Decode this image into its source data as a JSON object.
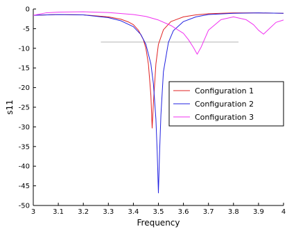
{
  "chart_data": {
    "type": "line",
    "xlabel": "Frequency",
    "ylabel": "s11",
    "xlim": [
      3,
      4
    ],
    "ylim": [
      -50,
      0
    ],
    "x_ticks": [
      3,
      3.1,
      3.2,
      3.3,
      3.4,
      3.5,
      3.6,
      3.7,
      3.8,
      3.9,
      4
    ],
    "y_ticks": [
      0,
      -5,
      -10,
      -15,
      -20,
      -25,
      -30,
      -35,
      -40,
      -45,
      -50
    ],
    "grid": false,
    "legend_position": "center-right",
    "series": [
      {
        "name": "Configuration 1",
        "color": "#e02020",
        "x": [
          3.0,
          3.1,
          3.2,
          3.3,
          3.35,
          3.38,
          3.4,
          3.42,
          3.44,
          3.45,
          3.46,
          3.47,
          3.475,
          3.48,
          3.49,
          3.5,
          3.52,
          3.55,
          3.6,
          3.65,
          3.7,
          3.8,
          3.9,
          4.0
        ],
        "y": [
          -1.6,
          -1.4,
          -1.5,
          -2.0,
          -2.6,
          -3.3,
          -4.0,
          -5.4,
          -7.8,
          -10.0,
          -14.0,
          -22.0,
          -30.3,
          -24.0,
          -14.0,
          -9.0,
          -5.3,
          -3.2,
          -2.0,
          -1.5,
          -1.2,
          -1.0,
          -1.0,
          -1.1
        ]
      },
      {
        "name": "Configuration 2",
        "color": "#2020e0",
        "x": [
          3.0,
          3.1,
          3.2,
          3.3,
          3.35,
          3.4,
          3.43,
          3.45,
          3.47,
          3.48,
          3.49,
          3.495,
          3.5,
          3.505,
          3.51,
          3.52,
          3.54,
          3.56,
          3.6,
          3.65,
          3.7,
          3.8,
          3.9,
          4.0
        ],
        "y": [
          -1.6,
          -1.4,
          -1.5,
          -2.2,
          -3.0,
          -4.5,
          -6.5,
          -9.0,
          -14.0,
          -19.0,
          -28.0,
          -36.0,
          -46.8,
          -36.0,
          -27.0,
          -16.0,
          -8.5,
          -5.5,
          -3.2,
          -2.0,
          -1.4,
          -1.1,
          -1.0,
          -1.1
        ]
      },
      {
        "name": "Configuration 3",
        "color": "#f030f0",
        "x": [
          3.0,
          3.05,
          3.1,
          3.2,
          3.3,
          3.4,
          3.45,
          3.5,
          3.55,
          3.6,
          3.62,
          3.64,
          3.655,
          3.67,
          3.7,
          3.75,
          3.8,
          3.85,
          3.88,
          3.9,
          3.92,
          3.94,
          3.97,
          4.0
        ],
        "y": [
          -1.6,
          -1.0,
          -0.8,
          -0.7,
          -0.9,
          -1.4,
          -1.9,
          -2.8,
          -4.2,
          -6.2,
          -7.8,
          -9.8,
          -11.5,
          -9.8,
          -5.4,
          -2.7,
          -2.0,
          -2.7,
          -4.0,
          -5.4,
          -6.4,
          -5.2,
          -3.4,
          -2.8
        ]
      }
    ],
    "annotations": [
      {
        "type": "hline",
        "y": -8.4,
        "x_start": 3.27,
        "x_end": 3.82,
        "color": "#cccccc"
      }
    ]
  }
}
